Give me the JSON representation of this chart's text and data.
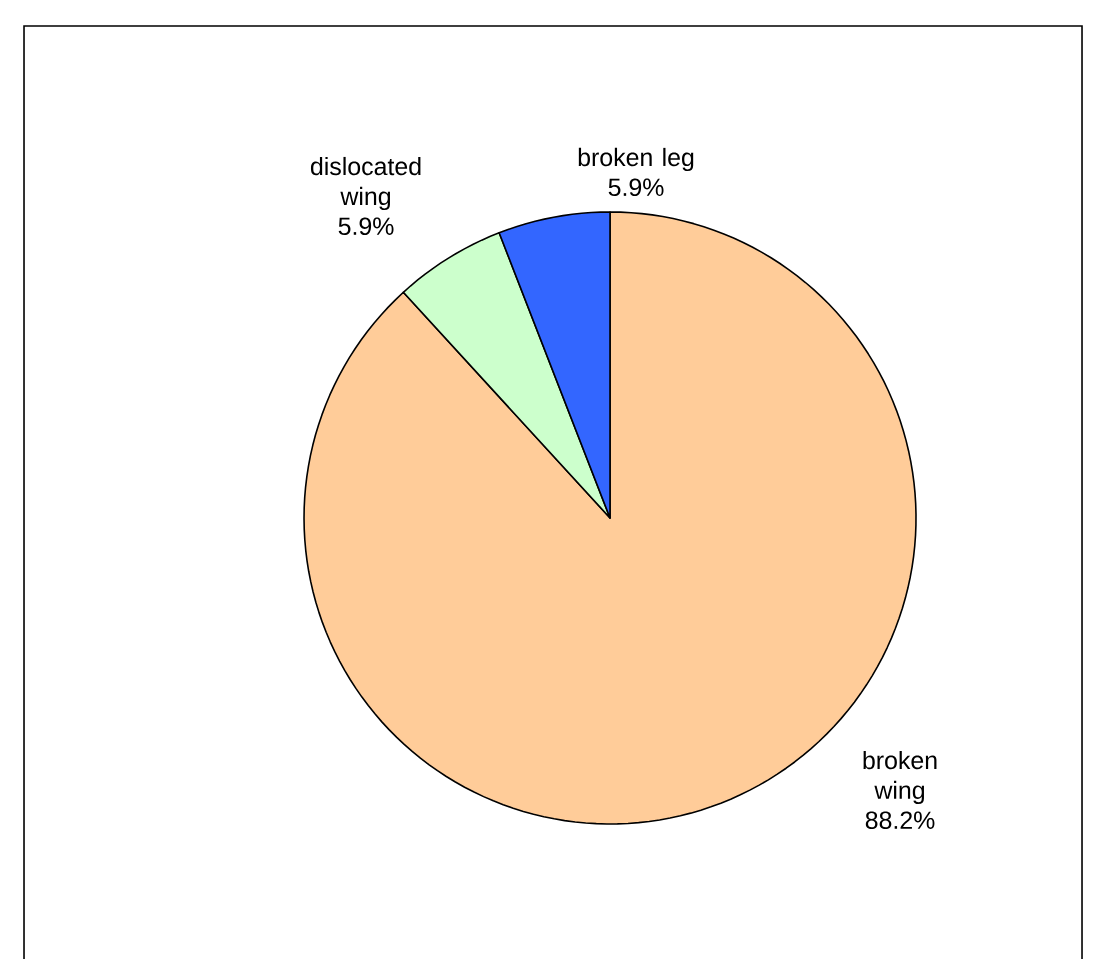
{
  "chart_data": {
    "type": "pie",
    "categories": [
      "broken wing",
      "dislocated wing",
      "broken leg"
    ],
    "values": [
      88.2,
      5.9,
      5.9
    ],
    "value_labels": [
      "88.2%",
      "5.9%",
      "5.9%"
    ],
    "colors": [
      "#ffcc99",
      "#ccffcc",
      "#3366ff"
    ],
    "data_labels": true
  }
}
